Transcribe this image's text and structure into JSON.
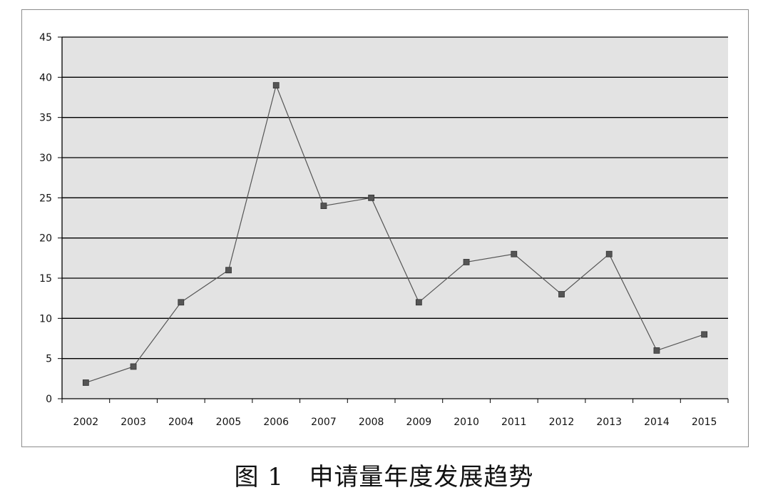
{
  "caption": {
    "figure_label": "图 1",
    "title": "申请量年度发展趋势"
  },
  "chart_data": {
    "type": "line",
    "title": "",
    "xlabel": "",
    "ylabel": "",
    "categories": [
      "2002",
      "2003",
      "2004",
      "2005",
      "2006",
      "2007",
      "2008",
      "2009",
      "2010",
      "2011",
      "2012",
      "2013",
      "2014",
      "2015"
    ],
    "values": [
      2,
      4,
      12,
      16,
      39,
      24,
      25,
      12,
      17,
      18,
      13,
      18,
      6,
      8
    ],
    "ylim": [
      0,
      45
    ],
    "yticks": [
      "0",
      "5",
      "10",
      "15",
      "20",
      "25",
      "30",
      "35",
      "40",
      "45"
    ],
    "grid": "horizontal",
    "legend": "none",
    "colors": {
      "plot_background": "#e3e3e3",
      "gridline": "#000000",
      "line": "#555555",
      "marker": "#555555"
    }
  }
}
